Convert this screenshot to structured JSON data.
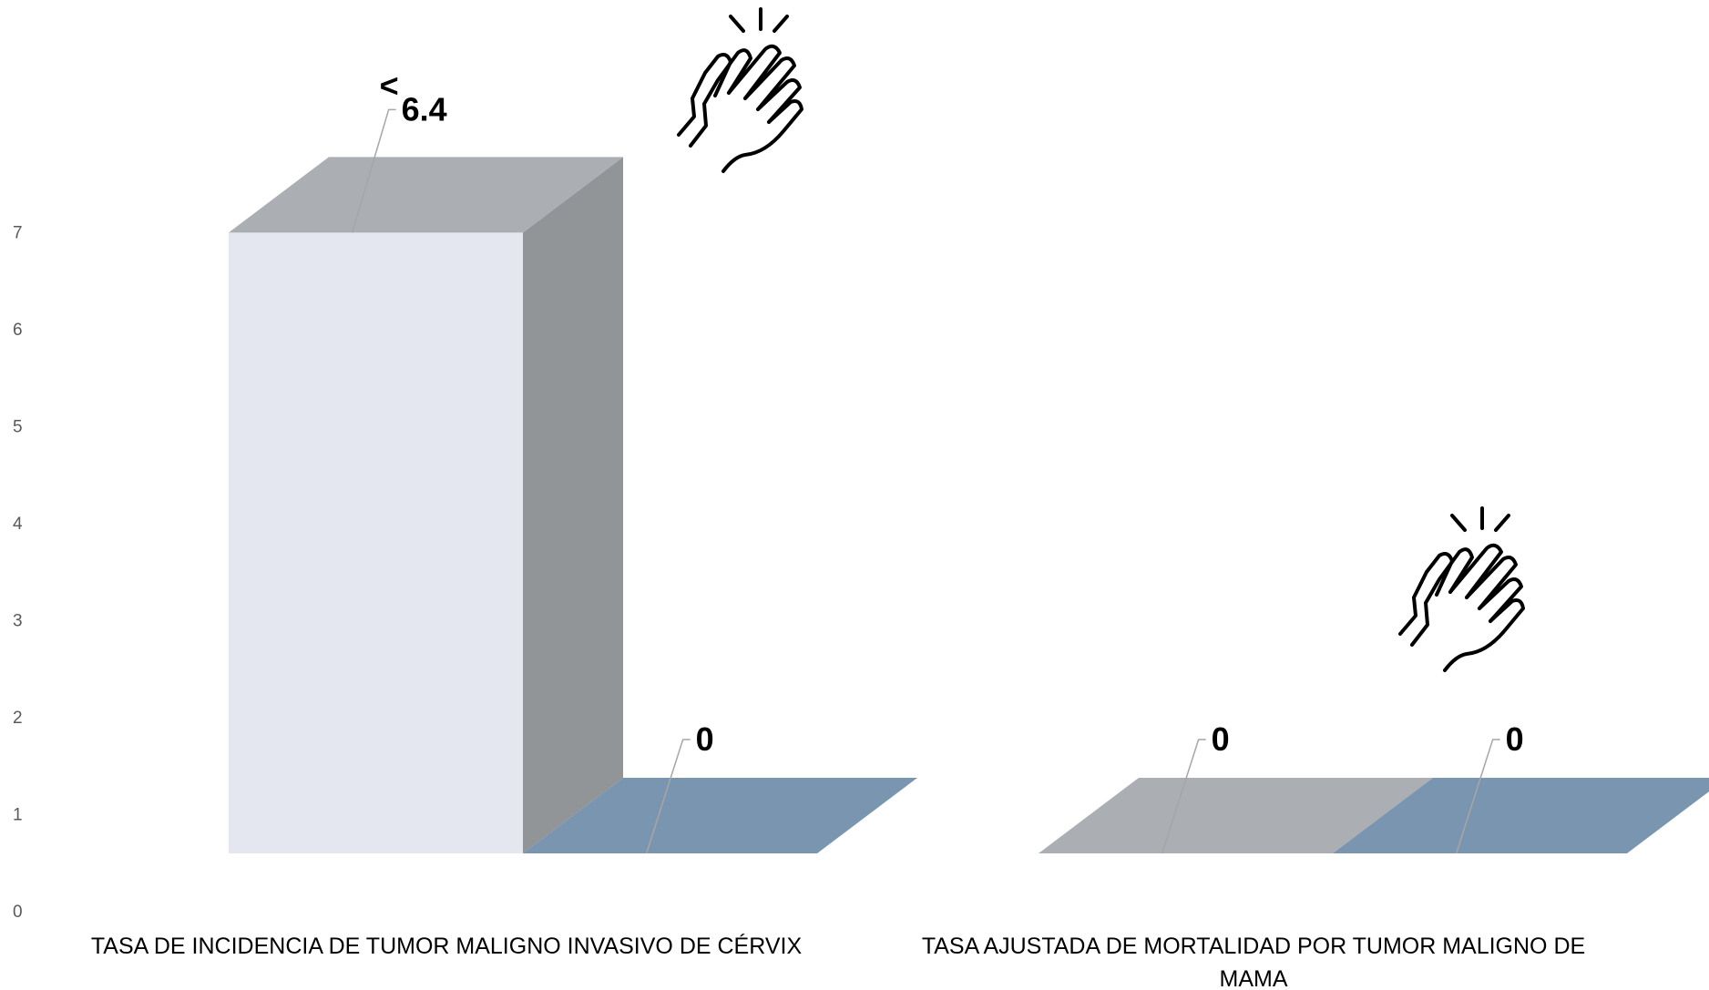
{
  "chart_data": {
    "type": "bar",
    "style": "3d-clustered",
    "categories": [
      "TASA DE INCIDENCIA DE TUMOR MALIGNO INVASIVO DE CÉRVIX",
      "TASA AJUSTADA DE MORTALIDAD POR TUMOR MALIGNO DE MAMA"
    ],
    "category_lines": [
      [
        "TASA DE INCIDENCIA DE TUMOR MALIGNO INVASIVO DE CÉRVIX"
      ],
      [
        "TASA AJUSTADA DE MORTALIDAD POR TUMOR MALIGNO DE",
        "MAMA"
      ]
    ],
    "series": [
      {
        "values": [
          6.4,
          0
        ],
        "color": "#e4e7ef"
      },
      {
        "values": [
          0,
          0
        ],
        "color": "#7a95b0"
      }
    ],
    "data_labels": [
      [
        "6.4",
        "0"
      ],
      [
        "0",
        "0"
      ]
    ],
    "label_prefix": "<",
    "y_ticks": [
      "0",
      "1",
      "2",
      "3",
      "4",
      "5",
      "6",
      "7"
    ],
    "ylim": [
      0,
      7
    ],
    "grid": false,
    "legend": "none",
    "icons": [
      "clapping-hands-icon",
      "clapping-hands-icon"
    ]
  }
}
